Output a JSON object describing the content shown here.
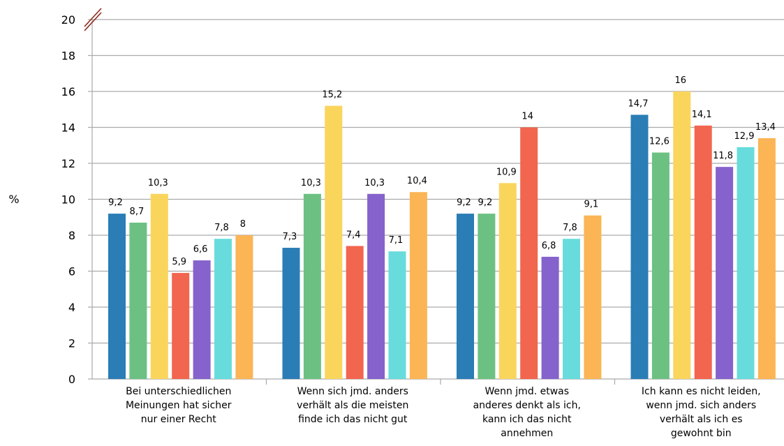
{
  "chart_data": {
    "type": "bar",
    "title": "",
    "xlabel": "",
    "ylabel": "%",
    "ylim": [
      0,
      20
    ],
    "yticks": [
      0,
      2,
      4,
      6,
      8,
      10,
      12,
      14,
      16,
      18,
      20
    ],
    "grid": true,
    "legend": "none",
    "axis_break": "top",
    "categories": [
      [
        "Bei unterschiedlichen",
        "Meinungen hat sicher",
        "nur einer Recht"
      ],
      [
        "Wenn sich jmd. anders",
        "verhält als die meisten",
        "finde ich das nicht gut"
      ],
      [
        "Wenn jmd. etwas",
        "anderes denkt als ich,",
        "kann ich das nicht",
        "annehmen"
      ],
      [
        "Ich kann es nicht leiden,",
        "wenn jmd. sich anders",
        "verhält als ich es",
        "gewohnt bin"
      ]
    ],
    "series": [
      {
        "color": "#2a7db5",
        "values": [
          9.2,
          7.3,
          9.2,
          14.7
        ],
        "labels": [
          "9,2",
          "7,3",
          "9,2",
          "14,7"
        ]
      },
      {
        "color": "#6cc182",
        "values": [
          8.7,
          10.3,
          9.2,
          12.6
        ],
        "labels": [
          "8,7",
          "10,3",
          "9,2",
          "12,6"
        ]
      },
      {
        "color": "#fad55c",
        "values": [
          10.3,
          15.2,
          10.9,
          16
        ],
        "labels": [
          "10,3",
          "15,2",
          "10,9",
          "16"
        ]
      },
      {
        "color": "#f2654e",
        "values": [
          5.9,
          7.4,
          14,
          14.1
        ],
        "labels": [
          "5,9",
          "7,4",
          "14",
          "14,1"
        ]
      },
      {
        "color": "#8662cc",
        "values": [
          6.6,
          10.3,
          6.8,
          11.8
        ],
        "labels": [
          "6,6",
          "10,3",
          "6,8",
          "11,8"
        ]
      },
      {
        "color": "#68dcdc",
        "values": [
          7.8,
          7.1,
          7.8,
          12.9
        ],
        "labels": [
          "7,8",
          "7,1",
          "7,8",
          "12,9"
        ]
      },
      {
        "color": "#fbb555",
        "values": [
          8,
          10.4,
          9.1,
          13.4
        ],
        "labels": [
          "8",
          "10,4",
          "9,1",
          "13,4"
        ]
      }
    ],
    "colors": {
      "grid": "#aaaaaa",
      "axis": "#aaaaaa",
      "break_mark": "#8b2a1a"
    }
  }
}
